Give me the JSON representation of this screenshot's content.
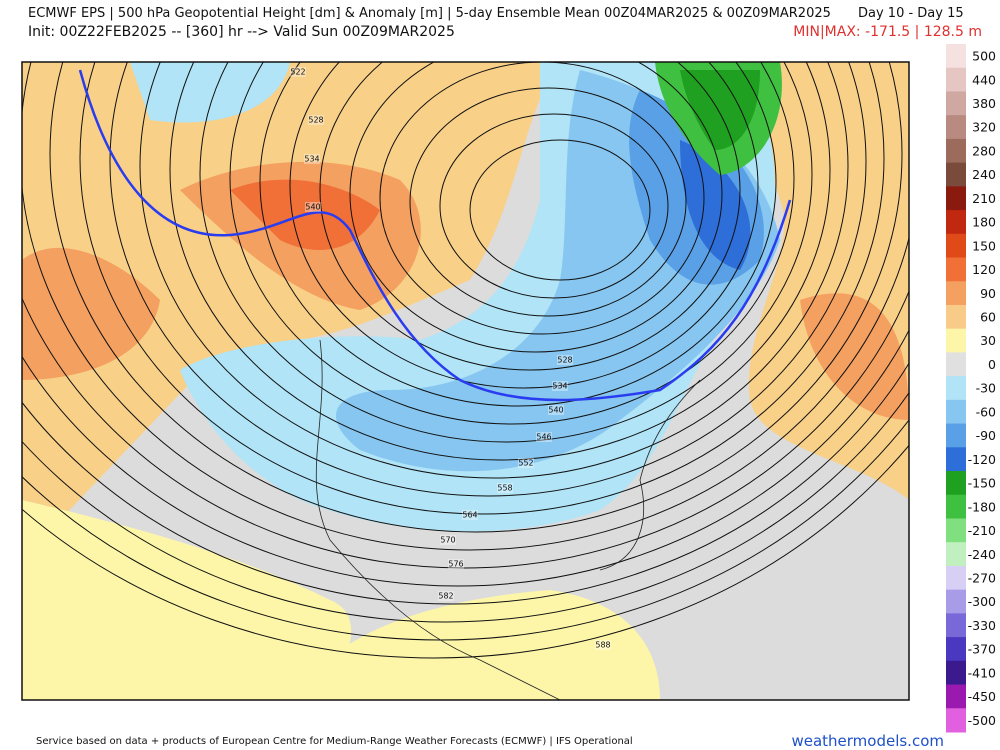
{
  "header": {
    "title": "ECMWF EPS | 500 hPa Geopotential Height [dm] & Anomaly [m] | 5-day Ensemble Mean 00Z04MAR2025 & 00Z09MAR2025",
    "days": "Day 10 - Day 15",
    "init": "Init: 00Z22FEB2025 -- [360] hr --> Valid Sun 00Z09MAR2025",
    "minmax": "MIN|MAX: -171.5 | 128.5 m"
  },
  "colorbar": {
    "ticks": [
      500,
      440,
      380,
      320,
      280,
      240,
      210,
      180,
      150,
      120,
      90,
      60,
      30,
      0,
      -30,
      -60,
      -90,
      -120,
      -150,
      -180,
      -210,
      -240,
      -270,
      -300,
      -330,
      -370,
      -410,
      -450,
      -500
    ],
    "colors": [
      "#f6e1e1",
      "#e6c6c3",
      "#d0a8a2",
      "#b88a80",
      "#9c6b5c",
      "#7a4a3a",
      "#8b1a0e",
      "#c02810",
      "#e04a18",
      "#f07038",
      "#f4a060",
      "#f8cc88",
      "#fdf6a8",
      "#e0e0e0",
      "#b0e4f6",
      "#86c6f0",
      "#5aa0e6",
      "#2d6ed8",
      "#20a020",
      "#40c040",
      "#80e080",
      "#c0f0c0",
      "#d8d0f4",
      "#a89ce8",
      "#7868d8",
      "#4a38c0",
      "#3a1a8c",
      "#9a1ab0",
      "#e060e0"
    ]
  },
  "map": {
    "contour_labels": [
      522,
      528,
      534,
      540,
      528,
      534,
      540,
      546,
      552,
      558,
      564,
      570,
      576,
      582,
      588
    ]
  },
  "footer": {
    "credit": "Service based on data + products of European Centre for Medium-Range Weather Forecasts (ECMWF) | IFS Operational",
    "brand": "weathermodels.com"
  }
}
